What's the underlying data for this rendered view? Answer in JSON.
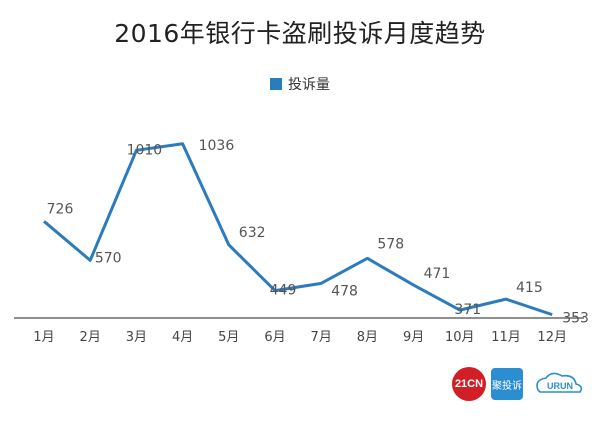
{
  "chart_data": {
    "type": "line",
    "title": "2016年银行卡盗刷投诉月度趋势",
    "categories": [
      "1月",
      "2月",
      "3月",
      "4月",
      "5月",
      "6月",
      "7月",
      "8月",
      "9月",
      "10月",
      "11月",
      "12月"
    ],
    "series": [
      {
        "name": "投诉量",
        "values": [
          726,
          570,
          1010,
          1036,
          632,
          449,
          478,
          578,
          471,
          371,
          415,
          353
        ],
        "color": "#2b7bbf"
      }
    ],
    "ylim": [
      0,
      1100
    ],
    "grid": false,
    "legend": "top-center"
  },
  "logos": {
    "logo1": "21CN",
    "logo2": "聚投诉",
    "logo3": "URUN"
  }
}
